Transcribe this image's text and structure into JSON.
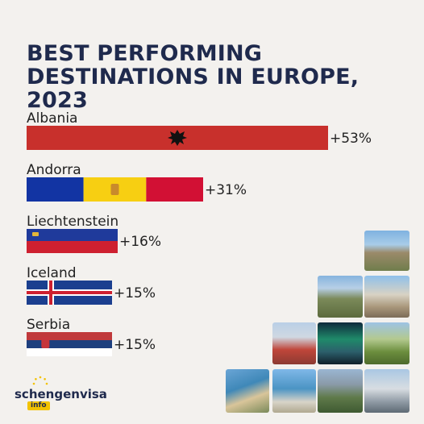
{
  "title_line1": "BEST PERFORMING",
  "title_line2": "DESTINATIONS IN EUROPE, 2023",
  "brand": {
    "name": "schengenvisa",
    "tag": "info"
  },
  "chart_data": {
    "type": "bar",
    "orientation": "horizontal",
    "title": "BEST PERFORMING DESTINATIONS IN EUROPE, 2023",
    "categories": [
      "Albania",
      "Andorra",
      "Liechtenstein",
      "Iceland",
      "Serbia"
    ],
    "values": [
      53,
      31,
      16,
      15,
      15
    ],
    "value_labels": [
      "+53%",
      "+31%",
      "+16%",
      "+15%",
      "+15%"
    ],
    "xlim": [
      0,
      53
    ],
    "grid": false,
    "legend": "none",
    "colors": {
      "albania": "#c8302c",
      "andorra_blue": "#1234a3",
      "andorra_yellow": "#f7cf12",
      "andorra_red": "#d21034",
      "blue": "#1f3a9b",
      "red": "#ce2030",
      "white": "#ffffff",
      "iceland_blue": "#1b3f8f",
      "serbia_red": "#c0393b",
      "serbia_blue": "#1d3f7e",
      "title": "#1f2a4d"
    }
  }
}
